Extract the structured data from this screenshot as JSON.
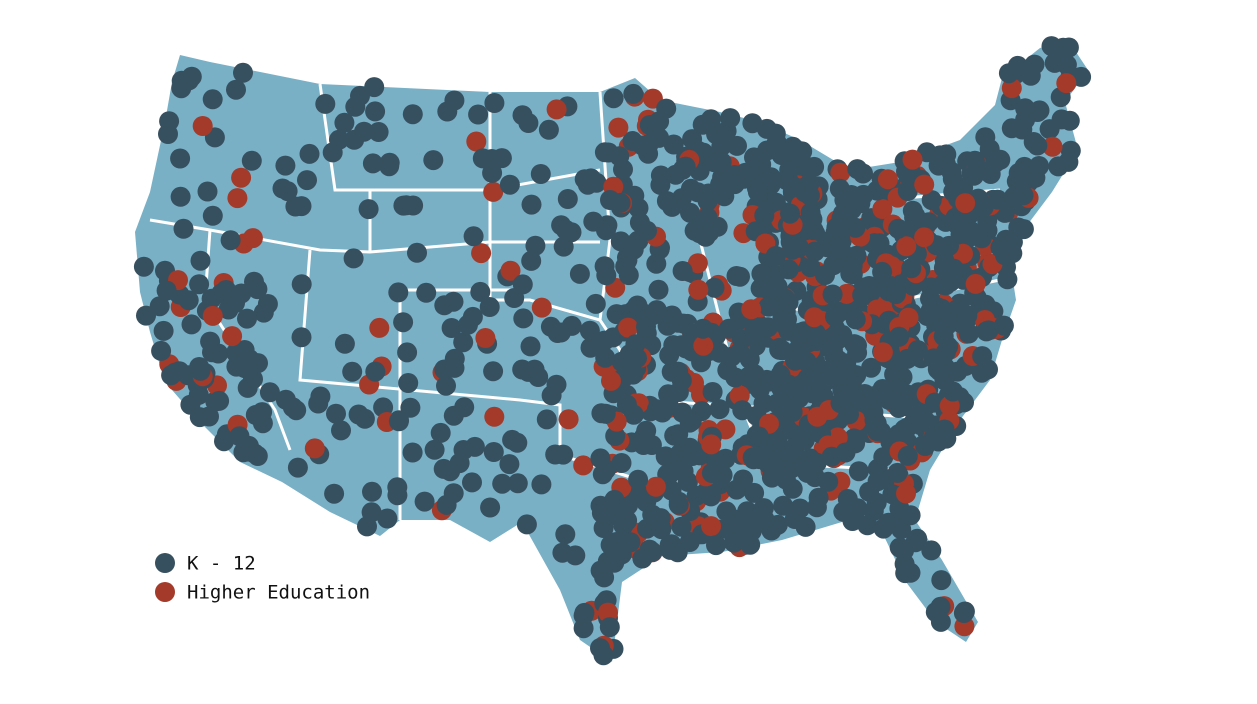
{
  "legend": {
    "items": [
      {
        "label": "K - 12",
        "color": "#37505f"
      },
      {
        "label": "Higher Education",
        "color": "#a33a2a"
      }
    ]
  }
}
